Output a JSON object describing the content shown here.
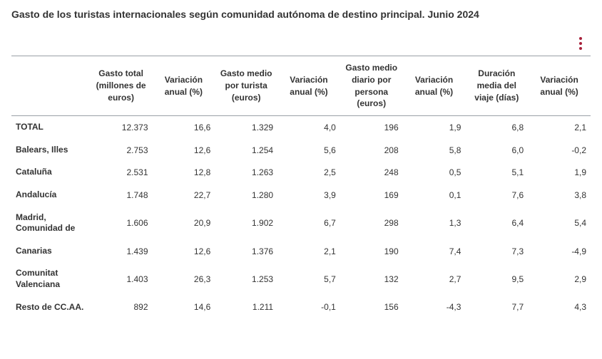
{
  "title": "Gasto de los turistas internacionales según comunidad autónoma de destino principal. Junio 2024",
  "columns": [
    "",
    "Gasto total (millones de euros)",
    "Variación anual (%)",
    "Gasto medio por turista (euros)",
    "Variación anual (%)",
    "Gasto medio diario por persona (euros)",
    "Variación anual (%)",
    "Duración media del viaje (días)",
    "Variación anual (%)"
  ],
  "rows": [
    {
      "label": "TOTAL",
      "c1": "12.373",
      "c2": "16,6",
      "c3": "1.329",
      "c4": "4,0",
      "c5": "196",
      "c6": "1,9",
      "c7": "6,8",
      "c8": "2,1"
    },
    {
      "label": "Balears, Illes",
      "c1": "2.753",
      "c2": "12,6",
      "c3": "1.254",
      "c4": "5,6",
      "c5": "208",
      "c6": "5,8",
      "c7": "6,0",
      "c8": "-0,2"
    },
    {
      "label": "Cataluña",
      "c1": "2.531",
      "c2": "12,8",
      "c3": "1.263",
      "c4": "2,5",
      "c5": "248",
      "c6": "0,5",
      "c7": "5,1",
      "c8": "1,9"
    },
    {
      "label": "Andalucía",
      "c1": "1.748",
      "c2": "22,7",
      "c3": "1.280",
      "c4": "3,9",
      "c5": "169",
      "c6": "0,1",
      "c7": "7,6",
      "c8": "3,8"
    },
    {
      "label": "Madrid, Comunidad de",
      "c1": "1.606",
      "c2": "20,9",
      "c3": "1.902",
      "c4": "6,7",
      "c5": "298",
      "c6": "1,3",
      "c7": "6,4",
      "c8": "5,4"
    },
    {
      "label": "Canarias",
      "c1": "1.439",
      "c2": "12,6",
      "c3": "1.376",
      "c4": "2,1",
      "c5": "190",
      "c6": "7,4",
      "c7": "7,3",
      "c8": "-4,9"
    },
    {
      "label": "Comunitat Valenciana",
      "c1": "1.403",
      "c2": "26,3",
      "c3": "1.253",
      "c4": "5,7",
      "c5": "132",
      "c6": "2,7",
      "c7": "9,5",
      "c8": "2,9"
    },
    {
      "label": "Resto de CC.AA.",
      "c1": "892",
      "c2": "14,6",
      "c3": "1.211",
      "c4": "-0,1",
      "c5": "156",
      "c6": "-4,3",
      "c7": "7,7",
      "c8": "4,3"
    }
  ],
  "colors": {
    "accent": "#a8203a",
    "border": "#9aa0a6",
    "text": "#333333",
    "background": "#ffffff"
  },
  "table_style": {
    "font_size_title": 14,
    "font_size_body": 12,
    "header_align": "center",
    "number_align": "right",
    "label_align": "left"
  }
}
